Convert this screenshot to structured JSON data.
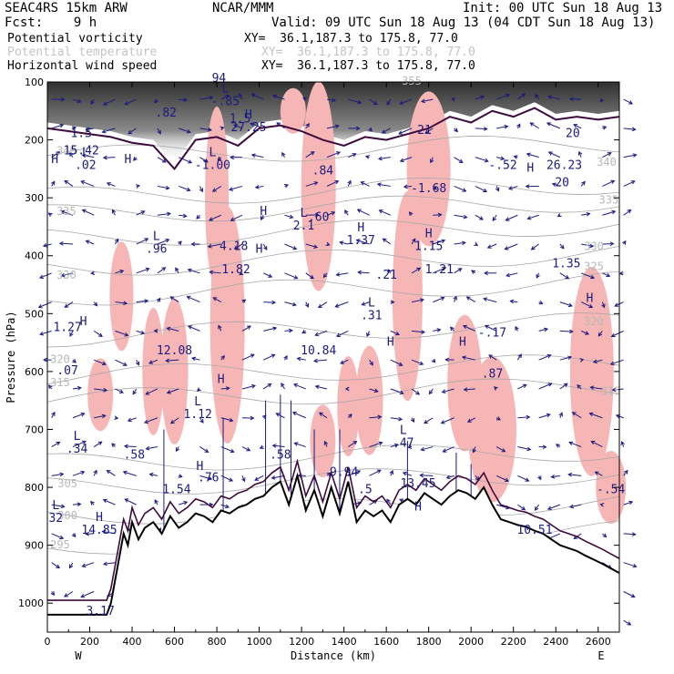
{
  "header": {
    "left1": "SEAC4RS 15km ARW",
    "left2": "Fcst:    9 h",
    "center": "NCAR/MMM",
    "init": "Init: 00 UTC Sun 18 Aug 13",
    "valid": "Valid: 09 UTC Sun 18 Aug 13 (04 CDT Sun 18 Aug 13)"
  },
  "fields": [
    {
      "name": "Potential vorticity",
      "xy": "XY=  36.1,187.3 to 175.8, 77.0",
      "color": "#000000"
    },
    {
      "name": "Potential temperature",
      "xy": "XY=  36.1,187.3 to 175.8, 77.0",
      "color": "#c4c4c4"
    },
    {
      "name": "Horizontal wind speed",
      "xy": "XY=  36.1,187.3 to 175.8, 77.0",
      "color": "#000000"
    }
  ],
  "colors": {
    "pv_shading": "#555555",
    "theta_contour": "#a8a8a8",
    "wind_arrow": "#1a1a80",
    "tropopause": "#3d0a3d",
    "pink_shading": "#f7b6b6",
    "wind_contour": "#1a1a90",
    "terrain": "#000000"
  },
  "chart_data": {
    "type": "cross-section",
    "xlabel": "Distance (km)",
    "ylabel": "Pressure (hPa)",
    "xlim": [
      0,
      2700
    ],
    "ylim": [
      1050,
      100
    ],
    "x_ticks": [
      "0",
      "200",
      "400",
      "600",
      "800",
      "1000",
      "1200",
      "1400",
      "1600",
      "1800",
      "2000",
      "2200",
      "2400",
      "2600"
    ],
    "y_ticks": [
      "100",
      "200",
      "300",
      "400",
      "500",
      "600",
      "700",
      "800",
      "900",
      "1000"
    ],
    "x_end_labels": {
      "left": "W",
      "right": "E"
    },
    "terrain": {
      "x": [
        0,
        280,
        300,
        320,
        340,
        360,
        380,
        400,
        430,
        460,
        500,
        540,
        580,
        620,
        660,
        700,
        740,
        780,
        820,
        860,
        900,
        940,
        980,
        1020,
        1060,
        1100,
        1140,
        1180,
        1220,
        1260,
        1300,
        1340,
        1380,
        1420,
        1460,
        1500,
        1540,
        1580,
        1620,
        1660,
        1700,
        1740,
        1780,
        1820,
        1860,
        1900,
        1940,
        1980,
        2020,
        2060,
        2100,
        2140,
        2180,
        2220,
        2260,
        2300,
        2340,
        2380,
        2420,
        2460,
        2500,
        2540,
        2580,
        2620,
        2660,
        2700
      ],
      "p": [
        1020,
        1020,
        1000,
        960,
        920,
        880,
        900,
        860,
        890,
        870,
        860,
        880,
        850,
        870,
        860,
        845,
        850,
        860,
        840,
        845,
        835,
        830,
        820,
        815,
        800,
        790,
        830,
        780,
        840,
        805,
        850,
        800,
        845,
        790,
        860,
        840,
        850,
        840,
        860,
        830,
        820,
        830,
        810,
        820,
        830,
        815,
        805,
        810,
        820,
        800,
        830,
        855,
        860,
        865,
        868,
        875,
        880,
        890,
        900,
        905,
        910,
        918,
        925,
        932,
        940,
        948
      ]
    },
    "h_labels": [
      {
        "x": 35,
        "p": 240,
        "t": "H"
      },
      {
        "x": 380,
        "p": 240,
        "t": "H"
      },
      {
        "x": 170,
        "p": 520,
        "t": "H"
      },
      {
        "x": 820,
        "p": 620,
        "t": "H"
      },
      {
        "x": 1620,
        "p": 555,
        "t": "H"
      },
      {
        "x": 1960,
        "p": 555,
        "t": "H"
      },
      {
        "x": 2560,
        "p": 480,
        "t": "H"
      },
      {
        "x": 1000,
        "p": 395,
        "t": "H"
      },
      {
        "x": 1020,
        "p": 330,
        "t": "H"
      },
      {
        "x": 2280,
        "p": 255,
        "t": "H"
      },
      {
        "x": 720,
        "p": 770,
        "t": "H"
      },
      {
        "x": 1750,
        "p": 840,
        "t": "H"
      }
    ],
    "max_min_labels": [
      {
        "x": 40,
        "p": 860,
        "h": "L",
        "v": "32"
      },
      {
        "x": 245,
        "p": 880,
        "h": "H",
        "v": "14.85"
      },
      {
        "x": 250,
        "p": 1020,
        "h": "",
        "v": "3.17"
      },
      {
        "x": 160,
        "p": 195,
        "h": "",
        "v": "1.5"
      },
      {
        "x": 160,
        "p": 225,
        "h": "",
        "v": "15.42"
      },
      {
        "x": 180,
        "p": 250,
        "h": "L",
        "v": ".02"
      },
      {
        "x": 95,
        "p": 605,
        "h": "",
        "v": ".07"
      },
      {
        "x": 95,
        "p": 530,
        "h": "",
        "v": "1.27"
      },
      {
        "x": 140,
        "p": 740,
        "h": "L",
        "v": ".34"
      },
      {
        "x": 410,
        "p": 750,
        "h": "",
        "v": ".58"
      },
      {
        "x": 515,
        "p": 395,
        "h": "L",
        "v": ".96"
      },
      {
        "x": 600,
        "p": 570,
        "h": "",
        "v": "12.08"
      },
      {
        "x": 610,
        "p": 810,
        "h": "",
        "v": "1.54"
      },
      {
        "x": 710,
        "p": 680,
        "h": "L",
        "v": "1.12"
      },
      {
        "x": 760,
        "p": 790,
        "h": "",
        "v": ".76"
      },
      {
        "x": 780,
        "p": 250,
        "h": "L",
        "v": "-1.00"
      },
      {
        "x": 880,
        "p": 390,
        "h": "",
        "v": "4.18"
      },
      {
        "x": 890,
        "p": 430,
        "h": "",
        "v": "1.82"
      },
      {
        "x": 950,
        "p": 185,
        "h": "H",
        "v": "27.25"
      },
      {
        "x": 810,
        "p": 100,
        "h": "",
        "v": "94"
      },
      {
        "x": 840,
        "p": 140,
        "h": "L",
        "v": "-.85"
      },
      {
        "x": 560,
        "p": 160,
        "h": "",
        "v": ".82"
      },
      {
        "x": 910,
        "p": 170,
        "h": "",
        "v": "1.5"
      },
      {
        "x": 1100,
        "p": 750,
        "h": "",
        "v": ".58"
      },
      {
        "x": 1280,
        "p": 570,
        "h": "",
        "v": "10.84"
      },
      {
        "x": 1210,
        "p": 355,
        "h": "L",
        "v": "2.1"
      },
      {
        "x": 1280,
        "p": 340,
        "h": "",
        "v": ".60"
      },
      {
        "x": 1300,
        "p": 260,
        "h": "",
        "v": ".84"
      },
      {
        "x": 1400,
        "p": 780,
        "h": "",
        "v": "9.94"
      },
      {
        "x": 1480,
        "p": 380,
        "h": "H",
        "v": "1.37"
      },
      {
        "x": 1530,
        "p": 510,
        "h": "L",
        "v": ".31"
      },
      {
        "x": 1680,
        "p": 730,
        "h": "L",
        "v": ".47"
      },
      {
        "x": 1600,
        "p": 440,
        "h": "",
        "v": ".21"
      },
      {
        "x": 1750,
        "p": 800,
        "h": "",
        "v": "13.45"
      },
      {
        "x": 1800,
        "p": 390,
        "h": "H",
        "v": "1.15"
      },
      {
        "x": 1850,
        "p": 430,
        "h": "",
        "v": "1.21"
      },
      {
        "x": 1800,
        "p": 290,
        "h": "",
        "v": "-1.68"
      },
      {
        "x": 1780,
        "p": 190,
        "h": "",
        "v": "21"
      },
      {
        "x": 2100,
        "p": 540,
        "h": "",
        "v": "-.17"
      },
      {
        "x": 2100,
        "p": 610,
        "h": "",
        "v": ".87"
      },
      {
        "x": 2150,
        "p": 250,
        "h": "",
        "v": "-.52"
      },
      {
        "x": 2300,
        "p": 880,
        "h": "",
        "v": "10.51"
      },
      {
        "x": 2440,
        "p": 250,
        "h": "",
        "v": "26.23"
      },
      {
        "x": 2430,
        "p": 280,
        "h": "",
        "v": "20"
      },
      {
        "x": 2480,
        "p": 195,
        "h": "",
        "v": "20"
      },
      {
        "x": 2450,
        "p": 420,
        "h": "",
        "v": "1.35"
      },
      {
        "x": 2660,
        "p": 810,
        "h": "",
        "v": "-.54"
      },
      {
        "x": 1500,
        "p": 810,
        "h": "",
        "v": ".5"
      }
    ],
    "theta_labels": [
      {
        "x": 90,
        "p": 225,
        "t": "340"
      },
      {
        "x": 90,
        "p": 330,
        "t": "335"
      },
      {
        "x": 90,
        "p": 440,
        "t": "330"
      },
      {
        "x": 60,
        "p": 585,
        "t": "320"
      },
      {
        "x": 60,
        "p": 625,
        "t": "315"
      },
      {
        "x": 95,
        "p": 800,
        "t": "305"
      },
      {
        "x": 95,
        "p": 855,
        "t": "300"
      },
      {
        "x": 60,
        "p": 905,
        "t": "295"
      },
      {
        "x": 2580,
        "p": 390,
        "t": "330"
      },
      {
        "x": 2580,
        "p": 425,
        "t": "325"
      },
      {
        "x": 2580,
        "p": 520,
        "t": "320"
      },
      {
        "x": 2660,
        "p": 640,
        "t": "315"
      },
      {
        "x": 2640,
        "p": 245,
        "t": "340"
      },
      {
        "x": 2650,
        "p": 310,
        "t": "335"
      },
      {
        "x": 1720,
        "p": 105,
        "t": "355"
      }
    ]
  }
}
